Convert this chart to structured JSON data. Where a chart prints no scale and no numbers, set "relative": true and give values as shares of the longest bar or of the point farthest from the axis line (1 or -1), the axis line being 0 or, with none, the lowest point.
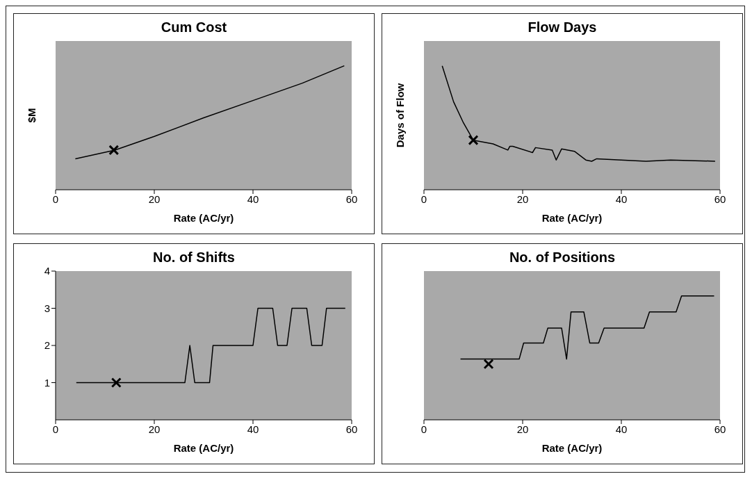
{
  "chart_data": [
    {
      "type": "line",
      "title": "Cum Cost",
      "xlabel": "Rate (AC/yr)",
      "ylabel": "$M",
      "relative": true,
      "xlim": [
        0,
        60
      ],
      "xticks": [
        0,
        20,
        40,
        60
      ],
      "series": [
        {
          "color": "#000000",
          "x": [
            4,
            12,
            20,
            30,
            40,
            50,
            58.5
          ],
          "values": [
            0.25,
            0.32,
            0.43,
            0.58,
            0.72,
            0.86,
            1
          ]
        },
        {
          "type": "scatter",
          "color": "#000000",
          "marker": "cross",
          "x": [
            11.8
          ],
          "values": [
            0.32
          ]
        }
      ]
    },
    {
      "type": "line",
      "title": "Flow Days",
      "xlabel": "Rate (AC/yr)",
      "ylabel": "Days of Flow",
      "relative": true,
      "xlim": [
        0,
        60
      ],
      "xticks": [
        0,
        20,
        40,
        60
      ],
      "series": [
        {
          "color": "#000000",
          "x": [
            3.7,
            6,
            8,
            10,
            14,
            17,
            17.4,
            18,
            22,
            22.6,
            26,
            26.8,
            27.9,
            30.5,
            32.8,
            34,
            35,
            40,
            45,
            50,
            59
          ],
          "values": [
            1,
            0.71,
            0.54,
            0.4,
            0.37,
            0.32,
            0.35,
            0.35,
            0.3,
            0.34,
            0.32,
            0.24,
            0.33,
            0.31,
            0.24,
            0.23,
            0.25,
            0.24,
            0.23,
            0.24,
            0.23
          ]
        },
        {
          "type": "scatter",
          "color": "#000000",
          "marker": "cross",
          "x": [
            10
          ],
          "values": [
            0.4
          ]
        }
      ]
    },
    {
      "type": "line",
      "title": "No. of Shifts",
      "xlabel": "Rate (AC/yr)",
      "xlim": [
        0,
        60
      ],
      "xticks": [
        0,
        20,
        40,
        60
      ],
      "ylim": [
        0,
        4
      ],
      "yticks": [
        1,
        2,
        3,
        4
      ],
      "series": [
        {
          "color": "#000000",
          "x": [
            4.2,
            26.2,
            27.2,
            28.2,
            31.2,
            31.9,
            40,
            41,
            44,
            45,
            46.9,
            47.9,
            50.9,
            51.9,
            54,
            54.9,
            58.7
          ],
          "values": [
            1,
            1,
            2,
            1,
            1,
            2,
            2,
            3,
            3,
            2,
            2,
            3,
            3,
            2,
            2,
            3,
            3
          ]
        },
        {
          "type": "scatter",
          "color": "#000000",
          "marker": "cross",
          "x": [
            12.3
          ],
          "values": [
            1
          ]
        }
      ]
    },
    {
      "type": "line",
      "title": "No. of Positions",
      "xlabel": "Rate (AC/yr)",
      "relative": true,
      "xlim": [
        0,
        60
      ],
      "xticks": [
        0,
        20,
        40,
        60
      ],
      "series": [
        {
          "color": "#000000",
          "x": [
            7.4,
            19.3,
            20.2,
            24.2,
            25.1,
            27.9,
            28.9,
            29.8,
            32.4,
            33.6,
            35.4,
            36.5,
            44.6,
            45.7,
            51.1,
            52.2,
            58.8
          ],
          "values": [
            0.49,
            0.49,
            0.62,
            0.62,
            0.74,
            0.74,
            0.49,
            0.87,
            0.87,
            0.62,
            0.62,
            0.74,
            0.74,
            0.87,
            0.87,
            1,
            1
          ]
        },
        {
          "type": "scatter",
          "color": "#000000",
          "marker": "cross",
          "x": [
            13.1
          ],
          "values": [
            0.45
          ]
        }
      ]
    }
  ]
}
